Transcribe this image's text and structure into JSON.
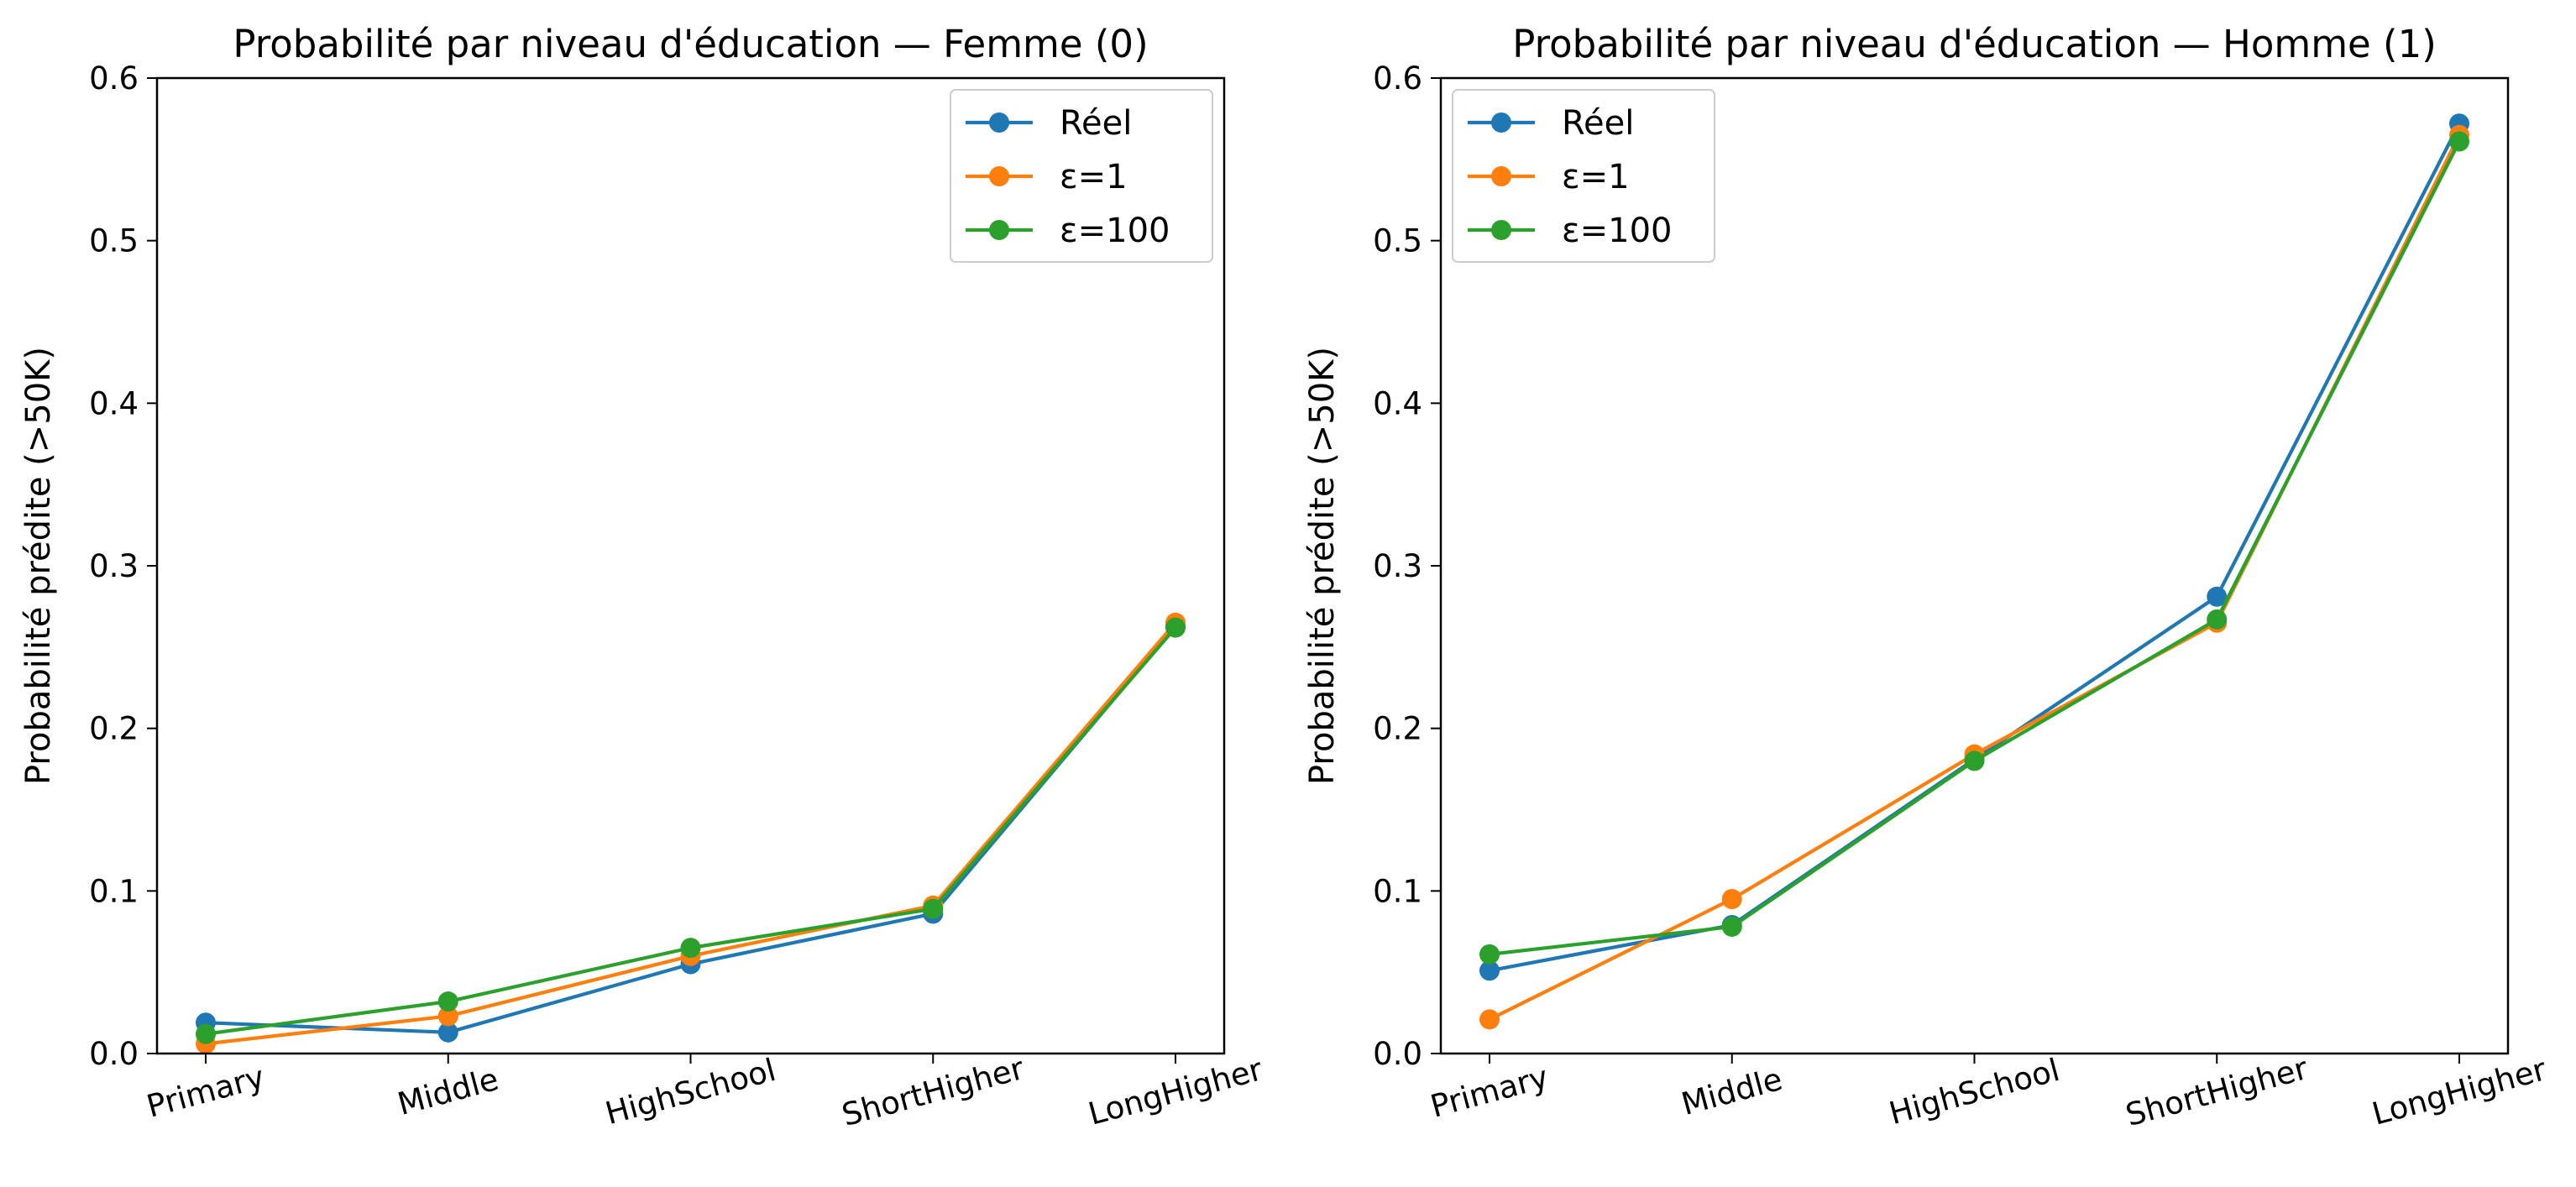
{
  "chart_data": [
    {
      "type": "line",
      "title": "Probabilité par niveau d'éducation — Femme (0)",
      "xlabel": "",
      "ylabel": "Probabilité prédite (>50K)",
      "categories": [
        "Primary",
        "Middle",
        "HighSchool",
        "ShortHigher",
        "LongHigher"
      ],
      "ylim": [
        0.0,
        0.6
      ],
      "yticks": [
        "0.0",
        "0.1",
        "0.2",
        "0.3",
        "0.4",
        "0.5",
        "0.6"
      ],
      "grid": false,
      "legend_position": "top-right",
      "series": [
        {
          "name": "Réel",
          "color": "#1f77b4",
          "marker": "circle",
          "values": [
            0.019,
            0.013,
            0.055,
            0.086,
            0.263
          ]
        },
        {
          "name": "ε=1",
          "color": "#ff7f0e",
          "marker": "circle",
          "values": [
            0.006,
            0.023,
            0.06,
            0.091,
            0.265
          ]
        },
        {
          "name": "ε=100",
          "color": "#2ca02c",
          "marker": "circle",
          "values": [
            0.012,
            0.032,
            0.065,
            0.089,
            0.262
          ]
        }
      ]
    },
    {
      "type": "line",
      "title": "Probabilité par niveau d'éducation — Homme (1)",
      "xlabel": "",
      "ylabel": "Probabilité prédite (>50K)",
      "categories": [
        "Primary",
        "Middle",
        "HighSchool",
        "ShortHigher",
        "LongHigher"
      ],
      "ylim": [
        0.0,
        0.6
      ],
      "yticks": [
        "0.0",
        "0.1",
        "0.2",
        "0.3",
        "0.4",
        "0.5",
        "0.6"
      ],
      "grid": false,
      "legend_position": "top-left",
      "series": [
        {
          "name": "Réel",
          "color": "#1f77b4",
          "marker": "circle",
          "values": [
            0.051,
            0.079,
            0.181,
            0.281,
            0.572
          ]
        },
        {
          "name": "ε=1",
          "color": "#ff7f0e",
          "marker": "circle",
          "values": [
            0.021,
            0.095,
            0.184,
            0.265,
            0.565
          ]
        },
        {
          "name": "ε=100",
          "color": "#2ca02c",
          "marker": "circle",
          "values": [
            0.061,
            0.078,
            0.18,
            0.267,
            0.561
          ]
        }
      ]
    }
  ]
}
